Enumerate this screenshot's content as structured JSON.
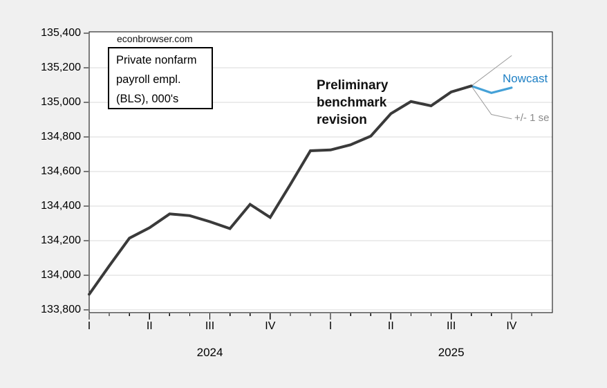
{
  "watermark": "econbrowser.com",
  "annotations": {
    "series_box": {
      "lines": [
        "Private nonfarm",
        "payroll empl.",
        "(BLS), 000's"
      ]
    },
    "prelim": {
      "lines": [
        "Preliminary",
        "benchmark",
        "revision"
      ]
    },
    "nowcast_label": "Nowcast",
    "se_label": "+/- 1 se"
  },
  "colors": {
    "background": "#f0f0f0",
    "plot_bg": "#ffffff",
    "plot_border": "#000000",
    "grid": "#d9d9d9",
    "actual_line": "#3a3a3a",
    "nowcast_line": "#45a1d7",
    "nowcast_label": "#1d7fc4",
    "se_line": "#9b9b9b",
    "se_label": "#8a8a8a"
  },
  "chart_data": {
    "type": "line",
    "title": "Private nonfarm payroll empl. (BLS), 000's",
    "source_watermark": "econbrowser.com",
    "grid": "horizontal",
    "legend": "none",
    "ylim": [
      133780,
      135416
    ],
    "y_ticks": [
      {
        "value": 135400,
        "label": "135,400"
      },
      {
        "value": 135200,
        "label": "135,200"
      },
      {
        "value": 135000,
        "label": "135,000"
      },
      {
        "value": 134800,
        "label": "134,800"
      },
      {
        "value": 134600,
        "label": "134,600"
      },
      {
        "value": 134400,
        "label": "134,400"
      },
      {
        "value": 134200,
        "label": "134,200"
      },
      {
        "value": 134000,
        "label": "134,000"
      },
      {
        "value": 133800,
        "label": "133,800"
      }
    ],
    "x_quarters": [
      {
        "label": "I",
        "month": "2024-01"
      },
      {
        "label": "II",
        "month": "2024-04"
      },
      {
        "label": "III",
        "month": "2024-07"
      },
      {
        "label": "IV",
        "month": "2024-10"
      },
      {
        "label": "I",
        "month": "2025-01"
      },
      {
        "label": "II",
        "month": "2025-04"
      },
      {
        "label": "III",
        "month": "2025-07"
      },
      {
        "label": "IV",
        "month": "2025-10"
      }
    ],
    "years": [
      {
        "label": "2024",
        "mid_month": "2024-07"
      },
      {
        "label": "2025",
        "mid_month": "2025-07"
      }
    ],
    "series": [
      {
        "name": "actual",
        "label": "Private nonfarm payroll empl. (BLS), 000's",
        "color": "#3a3a3a",
        "width": 4,
        "x": [
          "2024-01",
          "2024-02",
          "2024-03",
          "2024-04",
          "2024-05",
          "2024-06",
          "2024-07",
          "2024-08",
          "2024-09",
          "2024-10",
          "2024-11",
          "2024-12",
          "2025-01",
          "2025-02",
          "2025-03",
          "2025-04",
          "2025-05",
          "2025-06",
          "2025-07",
          "2025-08"
        ],
        "values": [
          133890,
          134055,
          134215,
          134275,
          134355,
          134345,
          134310,
          134270,
          134410,
          134335,
          134525,
          134720,
          134725,
          134755,
          134805,
          134935,
          135005,
          134980,
          135060,
          135095
        ]
      },
      {
        "name": "nowcast",
        "label": "Nowcast",
        "color": "#45a1d7",
        "width": 3.2,
        "x": [
          "2025-08",
          "2025-09",
          "2025-10"
        ],
        "values": [
          135095,
          135055,
          135085
        ]
      },
      {
        "name": "se-upper",
        "label": "+1 se",
        "color": "#9b9b9b",
        "width": 1,
        "x": [
          "2025-08",
          "2025-10"
        ],
        "values": [
          135095,
          135270
        ]
      },
      {
        "name": "se-lower",
        "label": "-1 se",
        "color": "#9b9b9b",
        "width": 1,
        "x": [
          "2025-08",
          "2025-09",
          "2025-10"
        ],
        "values": [
          135095,
          134930,
          134905
        ]
      }
    ]
  }
}
